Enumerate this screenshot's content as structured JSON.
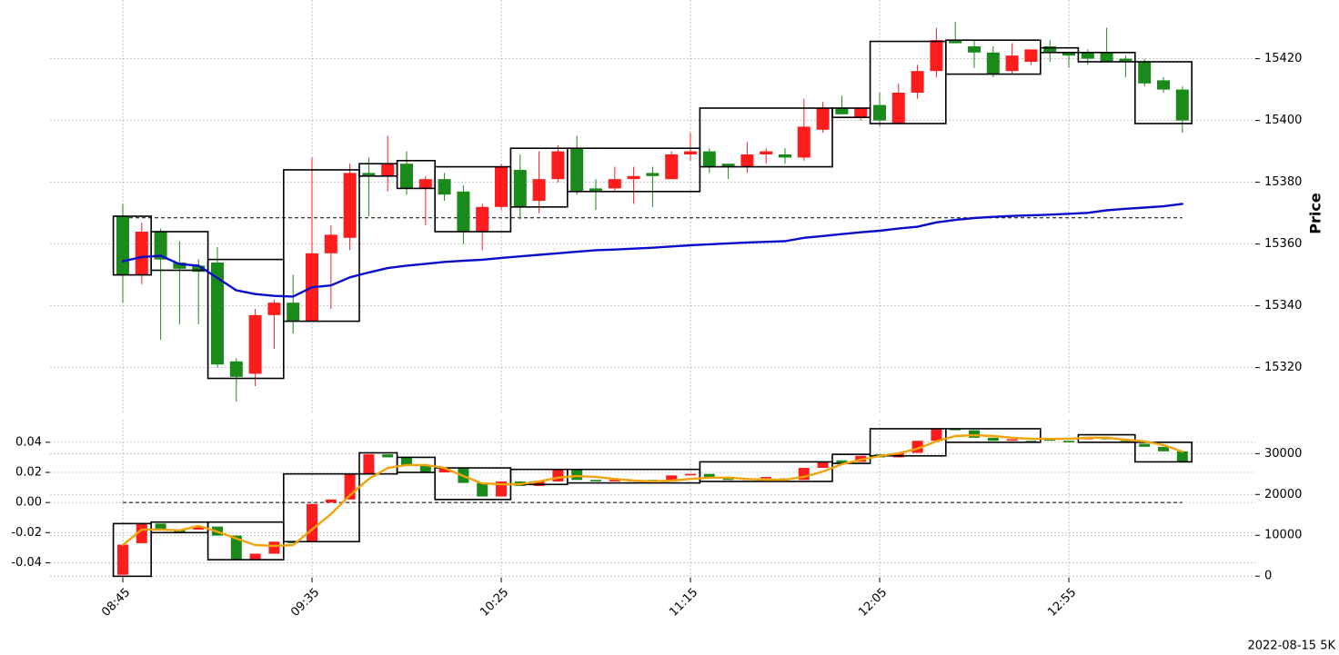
{
  "chart_data": [
    {
      "type": "candlestick",
      "y_label": "Price",
      "up_color": "#ff1c1c",
      "down_color": "#1a8a1a",
      "grid": true,
      "categories": [
        "08:45",
        null,
        null,
        null,
        null,
        null,
        null,
        null,
        null,
        null,
        "09:35",
        null,
        null,
        null,
        null,
        null,
        null,
        null,
        null,
        null,
        "10:25",
        null,
        null,
        null,
        null,
        null,
        null,
        null,
        null,
        null,
        "11:15",
        null,
        null,
        null,
        null,
        null,
        null,
        null,
        null,
        null,
        "12:05",
        null,
        null,
        null,
        null,
        null,
        null,
        null,
        null,
        null,
        "12:55",
        null,
        null,
        null,
        null,
        null,
        null
      ],
      "open": [
        15369,
        15350,
        15364,
        15354,
        15353,
        15354,
        15322,
        15318,
        15337,
        15341,
        15335,
        15357,
        15362,
        15383,
        15382,
        15386,
        15378,
        15381,
        15377,
        15364,
        15372,
        15384,
        15374,
        15381,
        15391,
        15378,
        15378,
        15381,
        15383,
        15381,
        15389,
        15390,
        15386,
        15385,
        15389,
        15389,
        15388,
        15397,
        15404,
        15401,
        15405,
        15399,
        15409,
        15416,
        15426,
        15424,
        15422,
        15416,
        15419,
        15424,
        15422,
        15422,
        15422,
        15420,
        15419,
        15413,
        15410
      ],
      "high": [
        15373,
        15367,
        15365,
        15361,
        15355,
        15359,
        15323,
        15339,
        15342,
        15350,
        15388,
        15366,
        15386,
        15388,
        15395,
        15390,
        15382,
        15383,
        15379,
        15373,
        15386,
        15389,
        15390,
        15392,
        15395,
        15381,
        15385,
        15385,
        15385,
        15390,
        15396,
        15391,
        15386,
        15393,
        15391,
        15391,
        15407,
        15406,
        15408,
        15404,
        15409,
        15412,
        15418,
        15430,
        15432,
        15426,
        15424,
        15425,
        15423,
        15426,
        15422,
        15423,
        15430,
        15421,
        15420,
        15414,
        15411
      ],
      "low": [
        15341,
        15347,
        15329,
        15334,
        15334,
        15320,
        15309,
        15314,
        15326,
        15331,
        15335,
        15339,
        15358,
        15369,
        15377,
        15376,
        15366,
        15374,
        15360,
        15358,
        15371,
        15368,
        15370,
        15380,
        15376,
        15371,
        15377,
        15373,
        15372,
        15381,
        15387,
        15383,
        15381,
        15383,
        15386,
        15386,
        15387,
        15396,
        15402,
        15400,
        15398,
        15399,
        15407,
        15414,
        15425,
        15417,
        15414,
        15415,
        15418,
        15419,
        15417,
        15418,
        15419,
        15414,
        15411,
        15409,
        15396
      ],
      "close": [
        15350,
        15364,
        15355,
        15352,
        15351,
        15321,
        15317,
        15337,
        15341,
        15335,
        15357,
        15363,
        15383,
        15382,
        15386,
        15378,
        15381,
        15376,
        15364,
        15372,
        15385,
        15372,
        15381,
        15390,
        15377,
        15377,
        15381,
        15382,
        15382,
        15389,
        15390,
        15385,
        15385,
        15389,
        15390,
        15388,
        15398,
        15404,
        15402,
        15404,
        15400,
        15409,
        15416,
        15426,
        15425,
        15422,
        15415,
        15421,
        15423,
        15422,
        15421,
        15420,
        15419,
        15419,
        15412,
        15410,
        15400
      ],
      "line": {
        "color": "#0b0bcc",
        "values": [
          15354.4,
          15355.8,
          15356.2,
          15353.5,
          15353,
          15349,
          15345,
          15343.8,
          15343.2,
          15343,
          15346,
          15346.6,
          15349.2,
          15350.8,
          15352.2,
          15353,
          15353.6,
          15354.2,
          15354.6,
          15354.9,
          15355.5,
          15356,
          15356.5,
          15357,
          15357.5,
          15358,
          15358.2,
          15358.5,
          15358.8,
          15359.2,
          15359.6,
          15359.9,
          15360.2,
          15360.5,
          15360.7,
          15360.9,
          15362,
          15362.6,
          15363.2,
          15363.8,
          15364.3,
          15365,
          15365.6,
          15367,
          15367.8,
          15368.4,
          15368.8,
          15369.1,
          15369.3,
          15369.5,
          15369.8,
          15370.1,
          15370.9,
          15371.4,
          15371.8,
          15372.2,
          15373
        ]
      },
      "reference_level": 15368.5,
      "boxes": [
        {
          "start": 0,
          "end": 1,
          "high": 15369,
          "low": 15350
        },
        {
          "start": 2,
          "end": 4,
          "high": 15364,
          "low": 15351.5
        },
        {
          "start": 5,
          "end": 8,
          "high": 15355,
          "low": 15316.5
        },
        {
          "start": 9,
          "end": 12,
          "high": 15384,
          "low": 15335
        },
        {
          "start": 13,
          "end": 14,
          "high": 15386,
          "low": 15382
        },
        {
          "start": 15,
          "end": 16,
          "high": 15387,
          "low": 15378
        },
        {
          "start": 17,
          "end": 20,
          "high": 15385,
          "low": 15364
        },
        {
          "start": 21,
          "end": 23,
          "high": 15391,
          "low": 15372
        },
        {
          "start": 24,
          "end": 30,
          "high": 15391,
          "low": 15377
        },
        {
          "start": 31,
          "end": 37,
          "high": 15404,
          "low": 15385
        },
        {
          "start": 38,
          "end": 39,
          "high": 15404,
          "low": 15401
        },
        {
          "start": 40,
          "end": 43,
          "high": 15425.6,
          "low": 15399
        },
        {
          "start": 44,
          "end": 48,
          "high": 15426,
          "low": 15415
        },
        {
          "start": 49,
          "end": 50,
          "high": 15423.5,
          "low": 15422
        },
        {
          "start": 51,
          "end": 53,
          "high": 15422,
          "low": 15419
        },
        {
          "start": 54,
          "end": 56,
          "high": 15419,
          "low": 15399
        }
      ],
      "ylim": [
        15305,
        15439
      ],
      "yticks": [
        15320,
        15340,
        15360,
        15380,
        15400,
        15420
      ]
    },
    {
      "type": "candlestick",
      "up_color": "#ff1c1c",
      "down_color": "#1a8a1a",
      "grid": true,
      "note": "2022-08-15 5K",
      "open": [
        -0.048,
        -0.027,
        -0.014,
        -0.018,
        -0.018,
        -0.016,
        -0.022,
        -0.038,
        -0.034,
        -0.026,
        -0.026,
        0,
        0.002,
        0.019,
        0.032,
        0.03,
        0.025,
        0.02,
        0.023,
        0.013,
        0.004,
        0.014,
        0.011,
        0.014,
        0.022,
        0.015,
        0.014,
        0.014,
        0.015,
        0.014,
        0.018,
        0.019,
        0.016,
        0.015,
        0.016,
        0.016,
        0.015,
        0.023,
        0.028,
        0.027,
        0.032,
        0.03,
        0.033,
        0.041,
        0.049,
        0.048,
        0.043,
        0.041,
        0.041,
        0.042,
        0.041,
        0.042,
        0.043,
        0.041,
        0.039,
        0.037,
        0.034
      ],
      "close": [
        -0.028,
        -0.014,
        -0.018,
        -0.02,
        -0.016,
        -0.022,
        -0.038,
        -0.034,
        -0.026,
        -0.027,
        -0.001,
        0.002,
        0.019,
        0.032,
        0.03,
        0.025,
        0.02,
        0.023,
        0.013,
        0.004,
        0.014,
        0.011,
        0.014,
        0.022,
        0.015,
        0.014,
        0.015,
        0.015,
        0.014,
        0.018,
        0.019,
        0.016,
        0.015,
        0.016,
        0.017,
        0.015,
        0.023,
        0.027,
        0.026,
        0.031,
        0.03,
        0.033,
        0.041,
        0.049,
        0.048,
        0.043,
        0.041,
        0.042,
        0.04,
        0.041,
        0.04,
        0.043,
        0.042,
        0.04,
        0.037,
        0.034,
        0.027
      ],
      "line": {
        "color": "#f0a30a",
        "axis": "y2",
        "values": [
          7600,
          11400,
          11400,
          11200,
          12300,
          10900,
          9200,
          7600,
          7400,
          7600,
          11400,
          15200,
          19800,
          23800,
          26500,
          27200,
          27200,
          26500,
          24500,
          22700,
          22500,
          22500,
          23200,
          24100,
          24500,
          24300,
          23800,
          23400,
          23200,
          23400,
          23800,
          24100,
          24100,
          23800,
          23600,
          23600,
          24300,
          25600,
          27400,
          28500,
          29400,
          30100,
          31200,
          33000,
          34300,
          34500,
          34300,
          33900,
          33600,
          33600,
          33600,
          33900,
          33900,
          33400,
          33000,
          32100,
          30500
        ]
      },
      "reference_level": 0,
      "boxes": [
        {
          "start": 0,
          "end": 1,
          "high": -0.014,
          "low": -0.049
        },
        {
          "start": 2,
          "end": 4,
          "high": -0.013,
          "low": -0.02
        },
        {
          "start": 5,
          "end": 8,
          "high": -0.013,
          "low": -0.038
        },
        {
          "start": 9,
          "end": 12,
          "high": 0.019,
          "low": -0.026
        },
        {
          "start": 13,
          "end": 14,
          "high": 0.033,
          "low": 0.019
        },
        {
          "start": 15,
          "end": 16,
          "high": 0.03,
          "low": 0.02
        },
        {
          "start": 17,
          "end": 20,
          "high": 0.023,
          "low": 0.002
        },
        {
          "start": 21,
          "end": 23,
          "high": 0.022,
          "low": 0.012
        },
        {
          "start": 24,
          "end": 30,
          "high": 0.022,
          "low": 0.013
        },
        {
          "start": 31,
          "end": 37,
          "high": 0.027,
          "low": 0.014
        },
        {
          "start": 38,
          "end": 39,
          "high": 0.032,
          "low": 0.026
        },
        {
          "start": 40,
          "end": 43,
          "high": 0.049,
          "low": 0.031
        },
        {
          "start": 44,
          "end": 48,
          "high": 0.049,
          "low": 0.04
        },
        {
          "start": 51,
          "end": 53,
          "high": 0.045,
          "low": 0.04
        },
        {
          "start": 54,
          "end": 56,
          "high": 0.04,
          "low": 0.027
        }
      ],
      "ylim": [
        -0.05,
        0.055
      ],
      "yticks": [
        0.04,
        0.02,
        {
          "value": 0,
          "label": "0.00"
        },
        -0.02,
        -0.04
      ],
      "y2lim": [
        -400,
        38300
      ],
      "y2ticks": [
        0,
        10000,
        20000,
        30000
      ]
    }
  ]
}
